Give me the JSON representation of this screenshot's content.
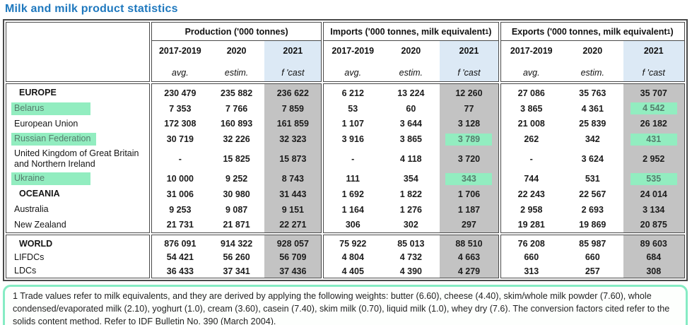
{
  "title": "Milk and milk product statistics",
  "colors": {
    "title_blue": "#1e78be",
    "header_2021_blue": "#dce9f5",
    "column_2021_gray": "#c3c3c3",
    "highlight_green": "#92edc0",
    "highlight_text_green": "#567d6d",
    "footnote_border_green": "#86ecc4"
  },
  "table": {
    "groups": [
      {
        "label_pre": "Production ('000 tonnes)",
        "sup": "",
        "label_post": ""
      },
      {
        "label_pre": "Imports ('000 tonnes, milk equivalent",
        "sup": "1",
        "label_post": ")"
      },
      {
        "label_pre": "Exports ('000 tonnes, milk equivalent",
        "sup": "1",
        "label_post": ")"
      }
    ],
    "year_columns": [
      {
        "year": "2017-2019",
        "sub": "avg."
      },
      {
        "year": "2020",
        "sub": "estim."
      },
      {
        "year": "2021",
        "sub": "f 'cast"
      }
    ],
    "sections": [
      {
        "rows": [
          {
            "label": "EUROPE",
            "bold": true,
            "production": [
              "230 479",
              "235 882",
              "236 622"
            ],
            "imports": [
              "6 212",
              "13 224",
              "12 260"
            ],
            "exports": [
              "27 086",
              "35 763",
              "35 707"
            ],
            "highlights": []
          },
          {
            "label": "Belarus",
            "label_highlight": true,
            "production": [
              "7 353",
              "7 766",
              "7 859"
            ],
            "imports": [
              "53",
              "60",
              "77"
            ],
            "exports": [
              "3 865",
              "4 361",
              "4 542"
            ],
            "highlights": [
              "exports:2"
            ]
          },
          {
            "label": "European Union",
            "production": [
              "172 308",
              "160 893",
              "161 859"
            ],
            "imports": [
              "1 107",
              "3 644",
              "3 128"
            ],
            "exports": [
              "21 008",
              "25 839",
              "26 182"
            ],
            "highlights": []
          },
          {
            "label": "Russian Federation",
            "label_highlight": true,
            "production": [
              "30 719",
              "32 226",
              "32 323"
            ],
            "imports": [
              "3 916",
              "3 865",
              "3 789"
            ],
            "exports": [
              "262",
              "342",
              "431"
            ],
            "highlights": [
              "imports:2",
              "exports:2"
            ]
          },
          {
            "label": "United Kingdom of Great Britain and Northern Ireland",
            "tall": true,
            "production": [
              "-",
              "15 825",
              "15 873"
            ],
            "imports": [
              "-",
              "4 118",
              "3 720"
            ],
            "exports": [
              "-",
              "3 624",
              "2 952"
            ],
            "highlights": []
          },
          {
            "label": "Ukraine",
            "label_highlight": true,
            "production": [
              "10 000",
              "9 252",
              "8 743"
            ],
            "imports": [
              "111",
              "354",
              "343"
            ],
            "exports": [
              "744",
              "531",
              "535"
            ],
            "highlights": [
              "imports:2",
              "exports:2"
            ]
          },
          {
            "label": "OCEANIA",
            "bold": true,
            "production": [
              "31 006",
              "30 980",
              "31 443"
            ],
            "imports": [
              "1 692",
              "1 822",
              "1 706"
            ],
            "exports": [
              "22 243",
              "22 567",
              "24 014"
            ],
            "highlights": []
          },
          {
            "label": "Australia",
            "production": [
              "9 253",
              "9 087",
              "9 151"
            ],
            "imports": [
              "1 164",
              "1 276",
              "1 187"
            ],
            "exports": [
              "2 958",
              "2 693",
              "3 134"
            ],
            "highlights": []
          },
          {
            "label": "New Zealand",
            "production": [
              "21 731",
              "21 871",
              "22 271"
            ],
            "imports": [
              "306",
              "302",
              "297"
            ],
            "exports": [
              "19 281",
              "19 869",
              "20 875"
            ],
            "highlights": []
          }
        ]
      },
      {
        "rows": [
          {
            "label": "WORLD",
            "bold": true,
            "production": [
              "876 091",
              "914 322",
              "928 057"
            ],
            "imports": [
              "75 922",
              "85 013",
              "88 510"
            ],
            "exports": [
              "76 208",
              "85 987",
              "89 603"
            ],
            "highlights": []
          },
          {
            "label": "LIFDCs",
            "production": [
              "54 421",
              "56 260",
              "56 709"
            ],
            "imports": [
              "4 804",
              "4 732",
              "4 663"
            ],
            "exports": [
              "660",
              "660",
              "684"
            ],
            "highlights": []
          },
          {
            "label": "LDCs",
            "production": [
              "36 433",
              "37 341",
              "37 436"
            ],
            "imports": [
              "4 405",
              "4 390",
              "4 279"
            ],
            "exports": [
              "313",
              "257",
              "308"
            ],
            "highlights": []
          }
        ]
      }
    ]
  },
  "footnote": "1 Trade values refer to milk equivalents, and they are derived by applying the following weights: butter (6.60), cheese (4.40), skim/whole milk powder (7.60), whole condensed/evaporated milk (2.10), yoghurt (1.0), cream (3.60), casein (7.40), skim milk (0.70), liquid milk (1.0), whey dry (7.6). The conversion factors cited refer to the solids content method. Refer to IDF Bulletin No. 390 (March 2004)."
}
